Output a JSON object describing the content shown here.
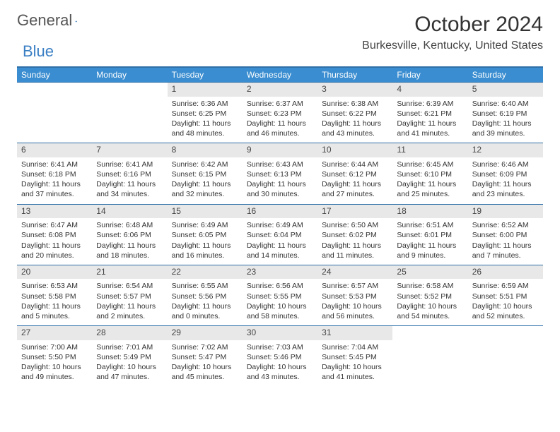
{
  "logo": {
    "t1": "General",
    "t2": "Blue"
  },
  "title": "October 2024",
  "location": "Burkesville, Kentucky, United States",
  "colors": {
    "header_bg": "#3a8dd0",
    "header_border": "#2e6fa8",
    "daynum_bg": "#e8e8e8",
    "text": "#333333"
  },
  "weekdays": [
    "Sunday",
    "Monday",
    "Tuesday",
    "Wednesday",
    "Thursday",
    "Friday",
    "Saturday"
  ],
  "blanks_before": 2,
  "days": [
    {
      "n": "1",
      "sr": "6:36 AM",
      "ss": "6:25 PM",
      "dl": "11 hours and 48 minutes."
    },
    {
      "n": "2",
      "sr": "6:37 AM",
      "ss": "6:23 PM",
      "dl": "11 hours and 46 minutes."
    },
    {
      "n": "3",
      "sr": "6:38 AM",
      "ss": "6:22 PM",
      "dl": "11 hours and 43 minutes."
    },
    {
      "n": "4",
      "sr": "6:39 AM",
      "ss": "6:21 PM",
      "dl": "11 hours and 41 minutes."
    },
    {
      "n": "5",
      "sr": "6:40 AM",
      "ss": "6:19 PM",
      "dl": "11 hours and 39 minutes."
    },
    {
      "n": "6",
      "sr": "6:41 AM",
      "ss": "6:18 PM",
      "dl": "11 hours and 37 minutes."
    },
    {
      "n": "7",
      "sr": "6:41 AM",
      "ss": "6:16 PM",
      "dl": "11 hours and 34 minutes."
    },
    {
      "n": "8",
      "sr": "6:42 AM",
      "ss": "6:15 PM",
      "dl": "11 hours and 32 minutes."
    },
    {
      "n": "9",
      "sr": "6:43 AM",
      "ss": "6:13 PM",
      "dl": "11 hours and 30 minutes."
    },
    {
      "n": "10",
      "sr": "6:44 AM",
      "ss": "6:12 PM",
      "dl": "11 hours and 27 minutes."
    },
    {
      "n": "11",
      "sr": "6:45 AM",
      "ss": "6:10 PM",
      "dl": "11 hours and 25 minutes."
    },
    {
      "n": "12",
      "sr": "6:46 AM",
      "ss": "6:09 PM",
      "dl": "11 hours and 23 minutes."
    },
    {
      "n": "13",
      "sr": "6:47 AM",
      "ss": "6:08 PM",
      "dl": "11 hours and 20 minutes."
    },
    {
      "n": "14",
      "sr": "6:48 AM",
      "ss": "6:06 PM",
      "dl": "11 hours and 18 minutes."
    },
    {
      "n": "15",
      "sr": "6:49 AM",
      "ss": "6:05 PM",
      "dl": "11 hours and 16 minutes."
    },
    {
      "n": "16",
      "sr": "6:49 AM",
      "ss": "6:04 PM",
      "dl": "11 hours and 14 minutes."
    },
    {
      "n": "17",
      "sr": "6:50 AM",
      "ss": "6:02 PM",
      "dl": "11 hours and 11 minutes."
    },
    {
      "n": "18",
      "sr": "6:51 AM",
      "ss": "6:01 PM",
      "dl": "11 hours and 9 minutes."
    },
    {
      "n": "19",
      "sr": "6:52 AM",
      "ss": "6:00 PM",
      "dl": "11 hours and 7 minutes."
    },
    {
      "n": "20",
      "sr": "6:53 AM",
      "ss": "5:58 PM",
      "dl": "11 hours and 5 minutes."
    },
    {
      "n": "21",
      "sr": "6:54 AM",
      "ss": "5:57 PM",
      "dl": "11 hours and 2 minutes."
    },
    {
      "n": "22",
      "sr": "6:55 AM",
      "ss": "5:56 PM",
      "dl": "11 hours and 0 minutes."
    },
    {
      "n": "23",
      "sr": "6:56 AM",
      "ss": "5:55 PM",
      "dl": "10 hours and 58 minutes."
    },
    {
      "n": "24",
      "sr": "6:57 AM",
      "ss": "5:53 PM",
      "dl": "10 hours and 56 minutes."
    },
    {
      "n": "25",
      "sr": "6:58 AM",
      "ss": "5:52 PM",
      "dl": "10 hours and 54 minutes."
    },
    {
      "n": "26",
      "sr": "6:59 AM",
      "ss": "5:51 PM",
      "dl": "10 hours and 52 minutes."
    },
    {
      "n": "27",
      "sr": "7:00 AM",
      "ss": "5:50 PM",
      "dl": "10 hours and 49 minutes."
    },
    {
      "n": "28",
      "sr": "7:01 AM",
      "ss": "5:49 PM",
      "dl": "10 hours and 47 minutes."
    },
    {
      "n": "29",
      "sr": "7:02 AM",
      "ss": "5:47 PM",
      "dl": "10 hours and 45 minutes."
    },
    {
      "n": "30",
      "sr": "7:03 AM",
      "ss": "5:46 PM",
      "dl": "10 hours and 43 minutes."
    },
    {
      "n": "31",
      "sr": "7:04 AM",
      "ss": "5:45 PM",
      "dl": "10 hours and 41 minutes."
    }
  ],
  "labels": {
    "sunrise": "Sunrise: ",
    "sunset": "Sunset: ",
    "daylight": "Daylight: "
  }
}
